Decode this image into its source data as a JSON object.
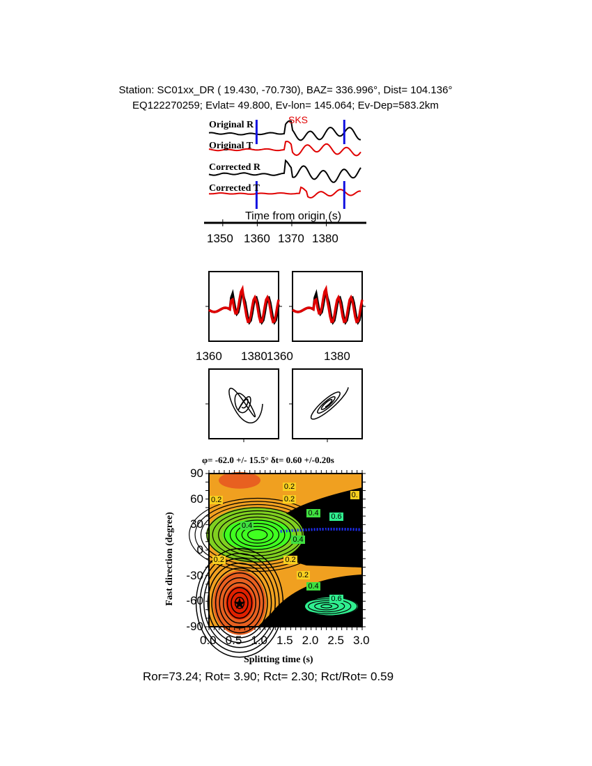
{
  "header": {
    "line1": "Station: SC01xx_DR (  19.430,  -70.730), BAZ=  336.996°, Dist=  104.136°",
    "line2": "EQ122270259; Evlat=  49.800, Ev-lon= 145.064; Ev-Dep=583.2km"
  },
  "chart_data": [
    {
      "type": "line",
      "title": "",
      "phase_label": "SKS",
      "traces": [
        "Original R",
        "Original T",
        "Corrected R",
        "Corrected T"
      ],
      "trace_colors": [
        "#000000",
        "#e00000",
        "#000000",
        "#e00000"
      ],
      "window_markers_s": [
        1359.8,
        1385.2
      ],
      "marker_color": "#1010e0",
      "xlabel": "Time from origin (s)",
      "xticks": [
        1350,
        1360,
        1370,
        1380
      ],
      "xlim": [
        1346,
        1392
      ]
    },
    {
      "type": "line",
      "panels": [
        "waveform-overlay-1",
        "waveform-overlay-2"
      ],
      "xticks": [
        1360,
        1380
      ],
      "series_colors": [
        "#000000",
        "#e00000"
      ]
    },
    {
      "type": "line",
      "panels": [
        "particle-motion-1",
        "particle-motion-2"
      ]
    },
    {
      "type": "heatmap",
      "title": "φ= -62.0 +/- 15.5° δt= 0.60 +/-0.20s",
      "xlabel": "Splitting time (s)",
      "ylabel": "Fast direction (degree)",
      "xlim": [
        0,
        3
      ],
      "ylim": [
        -90,
        90
      ],
      "xticks": [
        "0.0",
        "0.5",
        "1.0",
        "1.5",
        "2.0",
        "2.5",
        "3.0"
      ],
      "yticks": [
        "90",
        "60",
        "30",
        "0",
        "-30",
        "-60",
        "-90"
      ],
      "best_fit": {
        "dt": 0.6,
        "phi": -62.0
      },
      "contour_labels": [
        {
          "text": "0.2",
          "dt": 1.58,
          "phi": 73
        },
        {
          "text": "0.2",
          "dt": 1.58,
          "phi": 58
        },
        {
          "text": "0.2",
          "dt": 0.15,
          "phi": 57
        },
        {
          "text": "0.",
          "dt": 2.9,
          "phi": 63
        },
        {
          "text": "0.4",
          "dt": 2.05,
          "phi": 42
        },
        {
          "text": "0.6",
          "dt": 2.5,
          "phi": 38
        },
        {
          "text": "0.4",
          "dt": 0.75,
          "phi": 27
        },
        {
          "text": "0.4",
          "dt": 1.75,
          "phi": 11
        },
        {
          "text": "0.2",
          "dt": 0.2,
          "phi": -13
        },
        {
          "text": "0.2",
          "dt": 1.6,
          "phi": -13
        },
        {
          "text": "0.2",
          "dt": 1.85,
          "phi": -31
        },
        {
          "text": "0.4",
          "dt": 2.05,
          "phi": -44
        },
        {
          "text": "0.6",
          "dt": 2.5,
          "phi": -59
        }
      ],
      "colors": {
        "low": "#e02000",
        "mid": "#f0a020",
        "high": "#30f090",
        "max": "#2030ff",
        "background": "#000000"
      }
    }
  ],
  "footer": "Ror=73.24; Rot= 3.90; Rct= 2.30; Rct/Rot= 0.59"
}
